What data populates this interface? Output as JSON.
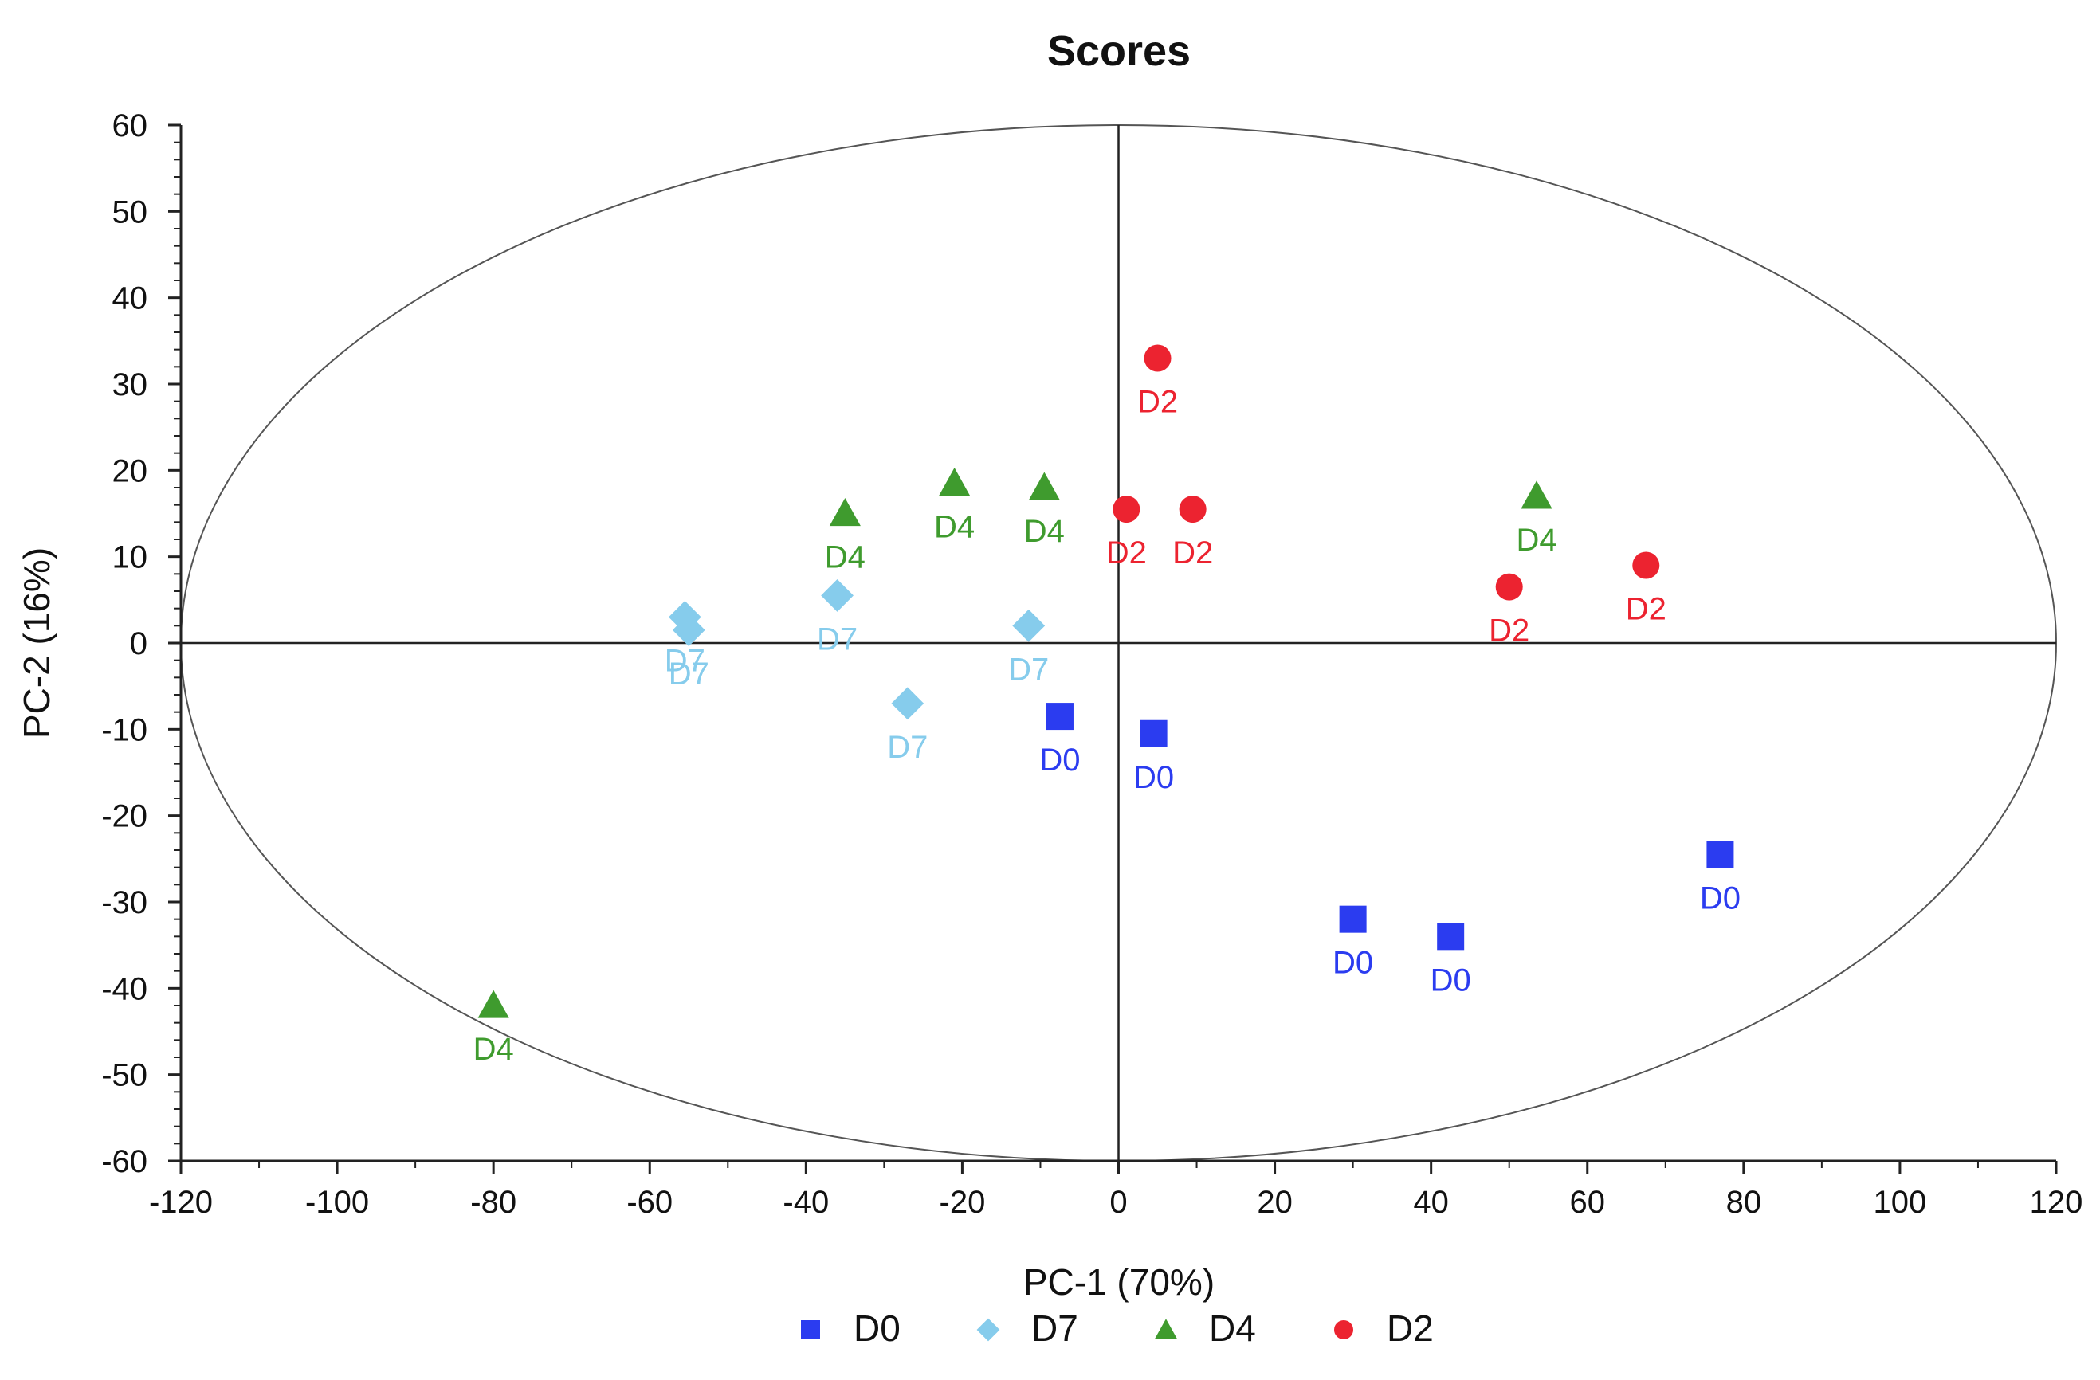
{
  "chart_data": {
    "type": "scatter",
    "title": "Scores",
    "xlabel": "PC-1 (70%)",
    "ylabel": "PC-2 (16%)",
    "xlim": [
      -120,
      120
    ],
    "ylim": [
      -60,
      60
    ],
    "xticks": [
      -120,
      -100,
      -80,
      -60,
      -40,
      -20,
      0,
      20,
      40,
      60,
      80,
      100,
      120
    ],
    "yticks": [
      60,
      50,
      40,
      30,
      20,
      10,
      0,
      -10,
      -20,
      -30,
      -40,
      -50,
      -60
    ],
    "grid": false,
    "confidence_ellipse": {
      "cx": 0,
      "cy": 0,
      "rx": 120,
      "ry": 60
    },
    "legend_position": "bottom-center",
    "series": [
      {
        "name": "D0",
        "marker": "square",
        "color": "#2b3cf0",
        "points": [
          [
            -7.5,
            -8.5
          ],
          [
            4.5,
            -10.5
          ],
          [
            30,
            -32
          ],
          [
            42.5,
            -34
          ],
          [
            77,
            -24.5
          ]
        ]
      },
      {
        "name": "D7",
        "marker": "diamond",
        "color": "#86ccec",
        "points": [
          [
            -55.5,
            3
          ],
          [
            -55,
            1.5
          ],
          [
            -36,
            5.5
          ],
          [
            -27,
            -7
          ],
          [
            -11.5,
            2
          ]
        ]
      },
      {
        "name": "D4",
        "marker": "triangle",
        "color": "#3f9b2e",
        "points": [
          [
            -80,
            -42
          ],
          [
            -35,
            15
          ],
          [
            -21,
            18.5
          ],
          [
            -9.5,
            18
          ],
          [
            53.5,
            17
          ]
        ]
      },
      {
        "name": "D2",
        "marker": "circle",
        "color": "#ec2330",
        "points": [
          [
            5,
            33
          ],
          [
            1,
            15.5
          ],
          [
            9.5,
            15.5
          ],
          [
            50,
            6.5
          ],
          [
            67.5,
            9
          ]
        ]
      }
    ]
  }
}
